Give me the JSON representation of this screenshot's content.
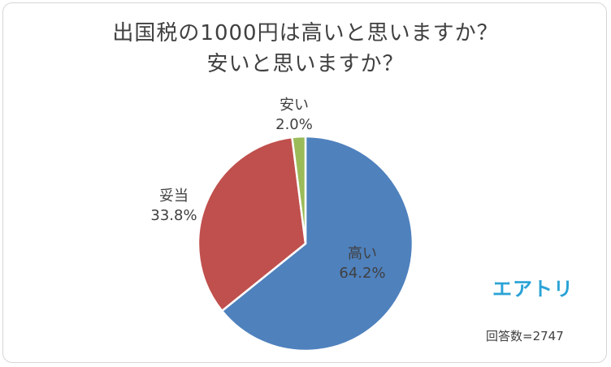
{
  "chart_data": {
    "type": "pie",
    "title_line1": "出国税の1000円は高いと思いますか？",
    "title_line2": "安いと思いますか？",
    "slices": [
      {
        "name": "高い",
        "value": 64.2,
        "label": "64.2%",
        "color": "#4f81bd"
      },
      {
        "name": "妥当",
        "value": 33.8,
        "label": "33.8%",
        "color": "#c0504d"
      },
      {
        "name": "安い",
        "value": 2.0,
        "label": "2.0%",
        "color": "#9bbb59"
      }
    ]
  },
  "brand": "エアトリ",
  "response_count": "回答数=2747"
}
